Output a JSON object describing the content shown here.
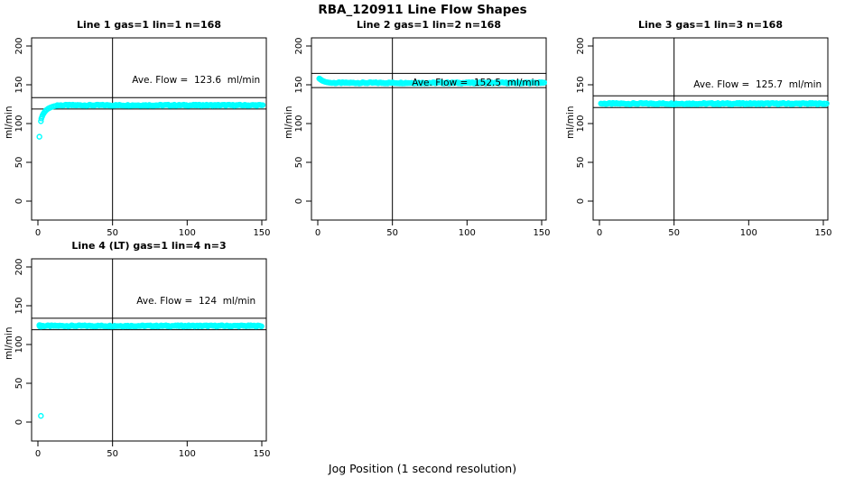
{
  "page": {
    "main_title": "RBA_120911  Line Flow Shapes",
    "shared_xlabel": "Jog Position (1 second resolution)",
    "background_color": "#ffffff",
    "point_color": "#00ffff",
    "line_color": "#000000"
  },
  "chart_data": [
    {
      "type": "scatter",
      "title": "Line 1 gas=1 lin=1 n=168",
      "ylabel": "ml/min",
      "ave_flow": 123.6,
      "annotation": {
        "text": "Ave. Flow =  123.6  ml/min",
        "x_center": 106,
        "y_value": 156
      },
      "x_ticks": [
        0,
        50,
        100,
        150
      ],
      "y_ticks": [
        0,
        50,
        100,
        150,
        200
      ],
      "xlim": [
        0,
        153
      ],
      "ylim": [
        0,
        210
      ],
      "vline_x": 50,
      "hlines": [
        133.5,
        118.7
      ],
      "series": {
        "rise": [
          [
            1,
            83
          ],
          [
            2,
            103
          ],
          [
            2.3,
            106.5
          ],
          [
            2.8,
            109
          ],
          [
            3.2,
            111
          ],
          [
            3.8,
            113
          ],
          [
            4.5,
            115
          ],
          [
            5.2,
            116.6
          ],
          [
            6,
            118
          ],
          [
            7,
            119.4
          ],
          [
            8,
            120.4
          ],
          [
            9,
            121.2
          ],
          [
            10,
            121.9
          ],
          [
            11,
            122.4
          ],
          [
            12,
            122.8
          ],
          [
            13,
            123.1
          ]
        ],
        "flat": {
          "from": 13,
          "to": 151,
          "step": 0.8,
          "value": 123.6,
          "jitter": 0.8
        },
        "outliers": []
      }
    },
    {
      "type": "scatter",
      "title": "Line 2 gas=1 lin=2 n=168",
      "ylabel": "ml/min",
      "ave_flow": 152.5,
      "annotation": {
        "text": "Ave. Flow =  152.5  ml/min",
        "x_center": 106,
        "y_value": 152
      },
      "x_ticks": [
        0,
        50,
        100,
        150
      ],
      "y_ticks": [
        0,
        50,
        100,
        150,
        200
      ],
      "xlim": [
        0,
        153
      ],
      "ylim": [
        0,
        210
      ],
      "vline_x": 50,
      "hlines": [
        164.7,
        146.4
      ],
      "series": {
        "rise": [
          [
            1,
            158
          ],
          [
            1.4,
            157.5
          ],
          [
            1.8,
            157
          ],
          [
            2.2,
            156.3
          ],
          [
            2.7,
            155.7
          ],
          [
            3.2,
            155.1
          ],
          [
            3.8,
            154.6
          ],
          [
            4.5,
            154.1
          ],
          [
            5.3,
            153.6
          ],
          [
            6.2,
            153.2
          ],
          [
            7.2,
            152.9
          ],
          [
            8.2,
            152.7
          ]
        ],
        "flat": {
          "from": 8.5,
          "to": 152.5,
          "step": 0.8,
          "value": 152.5,
          "jitter": 0.8
        },
        "outliers": []
      }
    },
    {
      "type": "scatter",
      "title": "Line 3 gas=1 lin=3 n=168",
      "ylabel": "ml/min",
      "ave_flow": 125.7,
      "annotation": {
        "text": "Ave. Flow =  125.7  ml/min",
        "x_center": 106,
        "y_value": 150
      },
      "x_ticks": [
        0,
        50,
        100,
        150
      ],
      "y_ticks": [
        0,
        50,
        100,
        150,
        200
      ],
      "xlim": [
        0,
        153
      ],
      "ylim": [
        0,
        210
      ],
      "vline_x": 50,
      "hlines": [
        135.8,
        120.7
      ],
      "series": {
        "rise": [],
        "flat": {
          "from": 1,
          "to": 152.5,
          "step": 0.8,
          "value": 125.7,
          "jitter": 0.9
        },
        "outliers": []
      }
    },
    {
      "type": "scatter",
      "title": "Line 4 (LT) gas=1 lin=4 n=3",
      "ylabel": "ml/min",
      "ave_flow": 124,
      "annotation": {
        "text": "Ave. Flow =  124  ml/min",
        "x_center": 106,
        "y_value": 156
      },
      "x_ticks": [
        0,
        50,
        100,
        150
      ],
      "y_ticks": [
        0,
        50,
        100,
        150,
        200
      ],
      "xlim": [
        0,
        153
      ],
      "ylim": [
        0,
        210
      ],
      "vline_x": 50,
      "hlines": [
        133.9,
        119.0
      ],
      "series": {
        "rise": [
          [
            1,
            125
          ],
          [
            1.3,
            123.3
          ],
          [
            1.7,
            124.8
          ],
          [
            2.1,
            123.1
          ],
          [
            1.5,
            124.2
          ]
        ],
        "flat": {
          "from": 1,
          "to": 150.5,
          "step": 0.8,
          "value": 124,
          "jitter": 0.8
        },
        "outliers": [
          [
            2,
            8
          ]
        ]
      }
    }
  ]
}
